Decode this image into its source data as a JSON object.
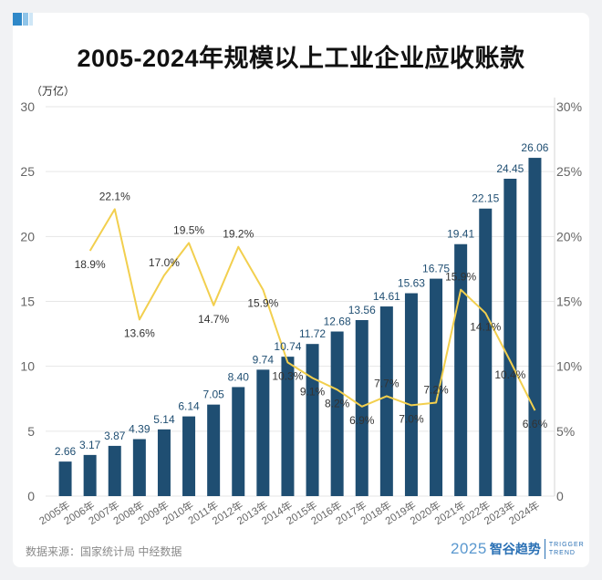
{
  "title": "2005-2024年规模以上工业企业应收账款",
  "unit_label": "（万亿）",
  "source": "数据来源：国家统计局 中经数据",
  "brand": {
    "year": "2025",
    "name": "智谷趋势",
    "en_line1": "TRIGGER",
    "en_line2": "TREND"
  },
  "colors": {
    "bar": "#1f4e72",
    "line": "#f2cf4e",
    "grid": "#e6e6e6",
    "axis_text": "#666666",
    "bar_label": "#1f4e72",
    "line_label": "#333333"
  },
  "chart_data": {
    "type": "bar",
    "categories": [
      "2005年",
      "2006年",
      "2007年",
      "2008年",
      "2009年",
      "2010年",
      "2011年",
      "2012年",
      "2013年",
      "2014年",
      "2015年",
      "2016年",
      "2017年",
      "2018年",
      "2019年",
      "2020年",
      "2021年",
      "2022年",
      "2023年",
      "2024年"
    ],
    "series": [
      {
        "type": "bar",
        "axis": "left",
        "values": [
          2.66,
          3.17,
          3.87,
          4.39,
          5.14,
          6.14,
          7.05,
          8.4,
          9.74,
          10.74,
          11.72,
          12.68,
          13.56,
          14.61,
          15.63,
          16.75,
          19.41,
          22.15,
          24.45,
          26.06
        ],
        "labels": [
          "2.66",
          "3.17",
          "3.87",
          "4.39",
          "5.14",
          "6.14",
          "7.05",
          "8.40",
          "9.74",
          "10.74",
          "11.72",
          "12.68",
          "13.56",
          "14.61",
          "15.63",
          "16.75",
          "19.41",
          "22.15",
          "24.45",
          "26.06"
        ]
      },
      {
        "type": "line",
        "axis": "right",
        "values": [
          null,
          18.9,
          22.1,
          13.6,
          17.0,
          19.5,
          14.7,
          19.2,
          15.9,
          10.3,
          9.1,
          8.2,
          6.9,
          7.7,
          7.0,
          7.2,
          15.9,
          14.1,
          10.4,
          6.6
        ],
        "labels": [
          null,
          "18.9%",
          "22.1%",
          "13.6%",
          "17.0%",
          "19.5%",
          "14.7%",
          "19.2%",
          "15.9%",
          "10.3%",
          "9.1%",
          "8.2%",
          "6.9%",
          "7.7%",
          "7.0%",
          "7.2%",
          "15.9%",
          "14.1%",
          "10.4%",
          "6.6%"
        ]
      }
    ],
    "y_left": {
      "min": 0,
      "max": 30,
      "ticks": [
        "0",
        "5",
        "10",
        "15",
        "20",
        "25",
        "30"
      ]
    },
    "y_right": {
      "min": 0,
      "max": 30,
      "ticks": [
        "0",
        "5%",
        "10%",
        "15%",
        "20%",
        "25%",
        "30%"
      ]
    },
    "grid": true
  }
}
